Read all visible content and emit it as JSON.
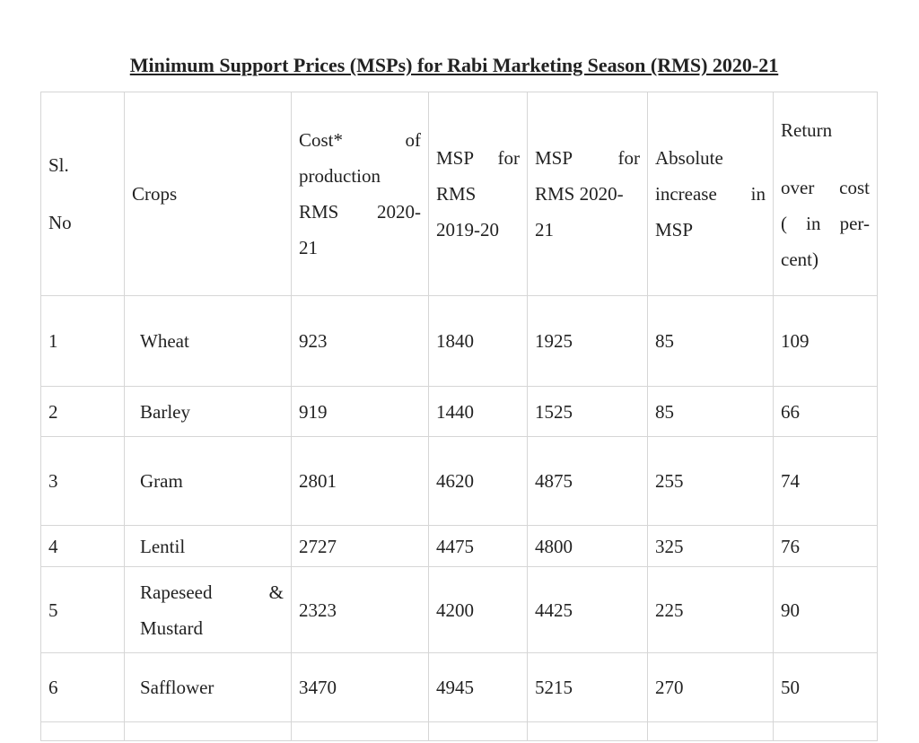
{
  "title": "Minimum Support Prices (MSPs) for Rabi Marketing Season (RMS) 2020-21",
  "headers": {
    "sl_line1": "Sl.",
    "sl_line2": "No",
    "crops": "Crops",
    "cost_l1": "Cost*",
    "cost_l1b": "of",
    "cost_l2": "production",
    "cost_l3a": "RMS",
    "cost_l3b": "2020-",
    "cost_l4": "21",
    "msp1920_l1a": "MSP",
    "msp1920_l1b": "for",
    "msp1920_l2": "RMS",
    "msp1920_l3": "2019-20",
    "msp2021_l1a": "MSP",
    "msp2021_l1b": "for",
    "msp2021_l2": "RMS 2020-",
    "msp2021_l3": "21",
    "abs_l1": "Absolute",
    "abs_l2a": "increase",
    "abs_l2b": "in",
    "abs_l3": "MSP",
    "ret_l1": "Return",
    "ret_l2a": "over",
    "ret_l2b": "cost",
    "ret_l3a": "(",
    "ret_l3b": "in",
    "ret_l3c": "per-",
    "ret_l4": "cent)"
  },
  "rows": [
    {
      "sl": "1",
      "crop": "Wheat",
      "cost": "923",
      "msp_2019_20": "1840",
      "msp_2020_21": "1925",
      "increase": "85",
      "return": "109"
    },
    {
      "sl": "2",
      "crop": "Barley",
      "cost": "919",
      "msp_2019_20": "1440",
      "msp_2020_21": "1525",
      "increase": "85",
      "return": "66"
    },
    {
      "sl": "3",
      "crop": "Gram",
      "cost": "2801",
      "msp_2019_20": "4620",
      "msp_2020_21": "4875",
      "increase": "255",
      "return": "74"
    },
    {
      "sl": "4",
      "crop": "Lentil",
      "cost": "2727",
      "msp_2019_20": "4475",
      "msp_2020_21": "4800",
      "increase": "325",
      "return": "76"
    },
    {
      "sl": "5",
      "crop_l1a": "Rapeseed",
      "crop_l1b": "&",
      "crop_l2": "Mustard",
      "cost": "2323",
      "msp_2019_20": "4200",
      "msp_2020_21": "4425",
      "increase": "225",
      "return": "90"
    },
    {
      "sl": "6",
      "crop": "Safflower",
      "cost": "3470",
      "msp_2019_20": "4945",
      "msp_2020_21": "5215",
      "increase": "270",
      "return": "50"
    }
  ]
}
